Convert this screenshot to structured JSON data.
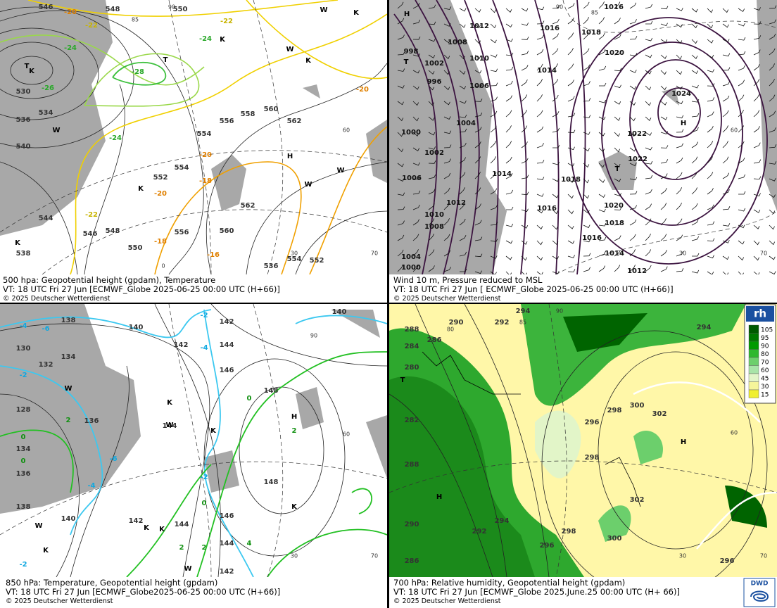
{
  "panels": [
    {
      "caption": [
        "500 hpa: Geopotential height (gpdam), Temperature",
        "VT: 18 UTC Fri  27 Jun [ECMWF_Globe 2025-06-25 00:00 UTC  (H+66)]",
        "© 2025 Deutscher Wetterdienst"
      ],
      "height_labels": [
        "546",
        "548",
        "550",
        "530",
        "534",
        "536",
        "540",
        "554",
        "556",
        "558",
        "560",
        "562",
        "552",
        "554",
        "562",
        "560",
        "556",
        "550",
        "548",
        "546",
        "544",
        "538",
        "554",
        "552",
        "536"
      ],
      "temp_labels": [
        "-20",
        "-22",
        "-22",
        "-24",
        "-24",
        "-26",
        "-28",
        "-24",
        "-20",
        "-20",
        "-18",
        "-20",
        "-22",
        "-18",
        "-16"
      ],
      "letters": [
        "T",
        "K",
        "T",
        "K",
        "K",
        "W",
        "W",
        "K",
        "H",
        "K",
        "W",
        "W",
        "K",
        "W"
      ],
      "grid_labels": [
        "90",
        "85",
        "60",
        "30",
        "70",
        "0"
      ]
    },
    {
      "caption": [
        "Wind 10 m, Pressure reduced to MSL",
        "VT: 18 UTC Fri  27 Jun [ ECMWF_Globe 2025-06-25 00:00 UTC  (H+66)]",
        "© 2025 Deutscher Wetterdienst"
      ],
      "height_labels": [
        "1016",
        "1012",
        "1016",
        "1018",
        "1008",
        "1020",
        "998",
        "1010",
        "1002",
        "1014",
        "996",
        "1006",
        "1024",
        "1004",
        "1000",
        "1022",
        "1002",
        "1022",
        "1014",
        "1018",
        "1006",
        "1012",
        "1016",
        "1020",
        "1010",
        "1018",
        "1008",
        "1016",
        "1014",
        "1004",
        "1000",
        "1012"
      ],
      "temp_labels": [],
      "letters": [
        "H",
        "T",
        "H",
        "T"
      ],
      "grid_labels": [
        "90",
        "85",
        "60",
        "30",
        "70"
      ]
    },
    {
      "caption": [
        "850 hPa:  Temperature, Geopotential height (gpdam)",
        "VT: 18 UTC Fri  27 Jun [ECMWF_Globe2025-06-25 00:00 UTC  (H+66)]",
        "© 2025 Deutscher Wetterdienst"
      ],
      "height_labels": [
        "138",
        "140",
        "142",
        "140",
        "142",
        "144",
        "146",
        "148",
        "130",
        "132",
        "134",
        "128",
        "136",
        "144",
        "134",
        "136",
        "148",
        "146",
        "144",
        "142",
        "140",
        "142",
        "144",
        "138"
      ],
      "temp_labels": [
        "-4",
        "-6",
        "-2",
        "-4",
        "-2",
        "2",
        "0",
        "0",
        "-6",
        "-4",
        "-2",
        "0",
        "0",
        "2",
        "2",
        "2",
        "4",
        "-2"
      ],
      "letters": [
        "H",
        "K",
        "K",
        "W",
        "W",
        "K",
        "K",
        "K",
        "W",
        "W",
        "K"
      ],
      "grid_labels": [
        "90",
        "60",
        "30",
        "70"
      ]
    },
    {
      "caption": [
        "700 hPa:  Relative humidity, Geopotential height (gpdam)",
        "VT: 18 UTC Fri  27 Jun [ECMWF_Globe  2025.June.25 00:00 UTC  (H+ 66)]",
        "© 2025 Deutscher Wetterdienst"
      ],
      "height_labels": [
        "294",
        "288",
        "290",
        "292",
        "294",
        "284",
        "286",
        "280",
        "282",
        "288",
        "290",
        "292",
        "294",
        "296",
        "298",
        "300",
        "296",
        "286",
        "296",
        "298",
        "300",
        "302",
        "298",
        "302"
      ],
      "temp_labels": [],
      "letters": [
        "H",
        "H",
        "T"
      ],
      "grid_labels": [
        "90",
        "85",
        "80",
        "60",
        "70",
        "30"
      ]
    }
  ],
  "legend": {
    "title": "rh",
    "ticks": [
      105,
      95,
      90,
      80,
      70,
      60,
      45,
      30,
      15
    ],
    "colors": [
      "#005a00",
      "#007800",
      "#009a00",
      "#2eb82e",
      "#6ccf6c",
      "#a8e4a8",
      "#e2f5c8",
      "#f5f59a",
      "#f0ef30"
    ]
  },
  "logo": "DWD"
}
